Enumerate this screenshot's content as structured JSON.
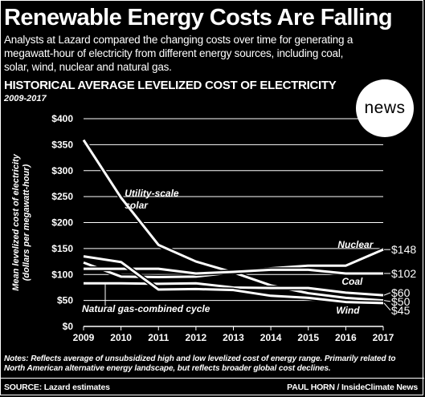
{
  "header": {
    "title": "Renewable Energy Costs Are Falling",
    "subtitle": "Analysts at Lazard compared the changing costs over time for generating a megawatt-hour of electricity from different energy sources, including coal, solar, wind, nuclear and natural gas."
  },
  "logo": {
    "text": "news"
  },
  "notes": "Notes: Reflects average of unsubsidized high and low levelized cost of energy range. Primarily related to North American alternative energy landscape, but reflects broader global cost declines.",
  "footer": {
    "source": "SOURCE: Lazard estimates",
    "credit": "PAUL HORN / InsideClimate News"
  },
  "chart_data": {
    "type": "line",
    "title": "HISTORICAL AVERAGE LEVELIZED COST OF ELECTRICITY",
    "subtitle": "2009-2017",
    "ylabel": "Mean levelized cost of electricity (dollars per megawatt-hour)",
    "xlabel": "",
    "x": [
      2009,
      2010,
      2011,
      2012,
      2013,
      2014,
      2015,
      2016,
      2017
    ],
    "x_ticks": [
      "2009",
      "2010",
      "2011",
      "2012",
      "2013",
      "2014",
      "2015",
      "2016",
      "2017"
    ],
    "ylim": [
      0,
      400
    ],
    "y_ticks": [
      0,
      50,
      100,
      150,
      200,
      250,
      300,
      350,
      400
    ],
    "y_tick_labels": [
      "$0",
      "$50",
      "$100",
      "$150",
      "$200",
      "$250",
      "$300",
      "$350",
      "$400"
    ],
    "grid": true,
    "series": [
      {
        "name": "Utility-scale solar",
        "label_lines": [
          "Utility-scale",
          "solar"
        ],
        "values": [
          359,
          248,
          157,
          125,
          104,
          79,
          64,
          55,
          50
        ],
        "end_label": "$50"
      },
      {
        "name": "Nuclear",
        "label_lines": [
          "Nuclear"
        ],
        "values": [
          123,
          96,
          95,
          96,
          104,
          112,
          117,
          117,
          148
        ],
        "end_label": "$148"
      },
      {
        "name": "Coal",
        "label_lines": [
          "Coal"
        ],
        "values": [
          111,
          111,
          111,
          102,
          105,
          109,
          109,
          102,
          102
        ],
        "end_label": "$102"
      },
      {
        "name": "Natural gas-combined cycle",
        "label_lines": [
          "Natural gas-combined cycle"
        ],
        "values": [
          83,
          83,
          82,
          83,
          75,
          74,
          74,
          65,
          60
        ],
        "end_label": "$60"
      },
      {
        "name": "Wind",
        "label_lines": [
          "Wind"
        ],
        "values": [
          135,
          124,
          71,
          72,
          70,
          59,
          55,
          47,
          45
        ],
        "end_label": "$45"
      }
    ]
  }
}
